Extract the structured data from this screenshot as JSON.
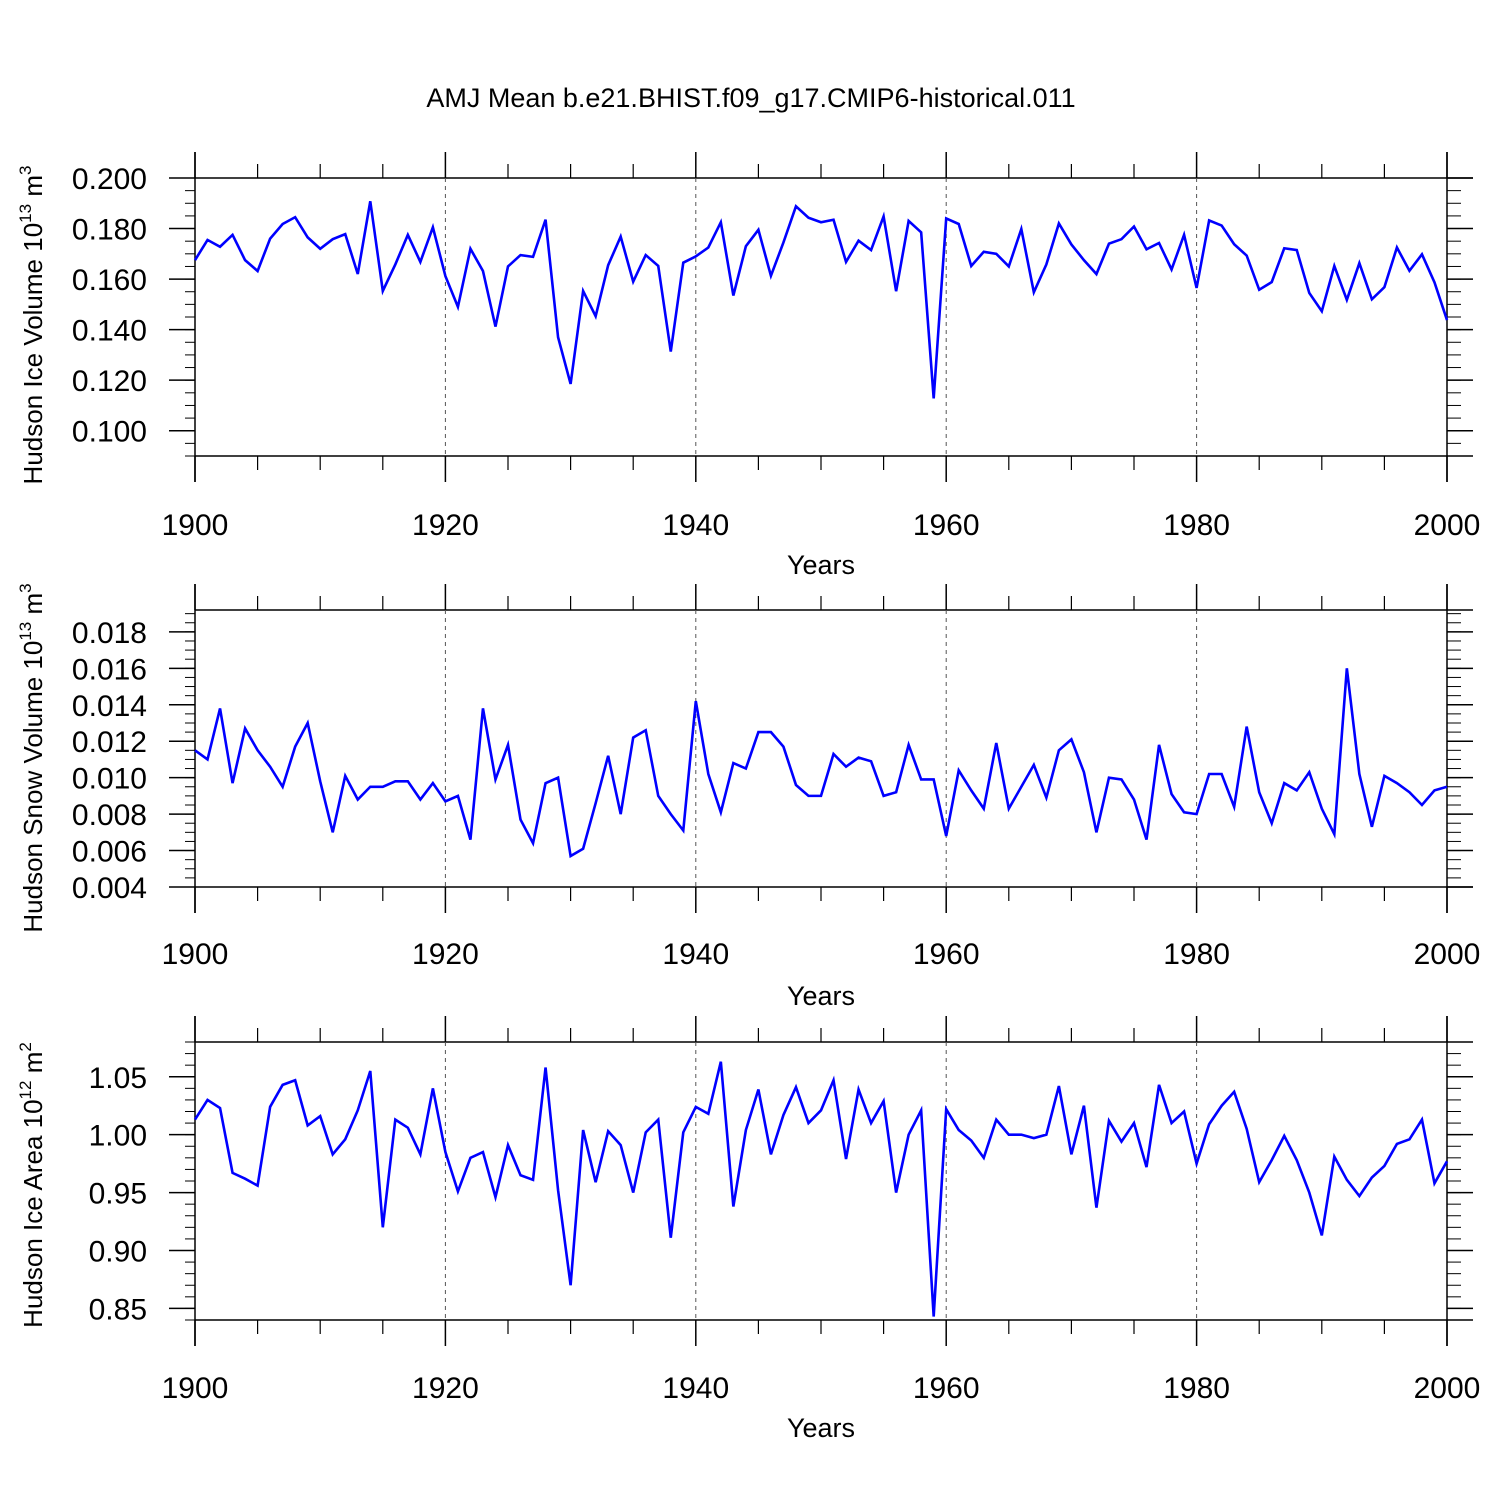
{
  "title": "AMJ Mean b.e21.BHIST.f09_g17.CMIP6-historical.011",
  "chart_data": [
    {
      "type": "line",
      "name": "panel-ice-volume",
      "ylabel_main": "Hudson Ice Volume 10",
      "ylabel_exp": "13",
      "ylabel_unit": " m",
      "ylabel_unit_exp": "3",
      "xlabel": "Years",
      "xlim": [
        1900,
        2000
      ],
      "ylim": [
        0.09,
        0.2
      ],
      "x_ticks": [
        "1900",
        "1920",
        "1940",
        "1960",
        "1980",
        "2000"
      ],
      "y_ticks": [
        "0.100",
        "0.120",
        "0.140",
        "0.160",
        "0.180",
        "0.200"
      ],
      "line_color": "#0000ff",
      "x_start": 1900,
      "values": [
        0.1675,
        0.1755,
        0.1728,
        0.1775,
        0.1675,
        0.1632,
        0.176,
        0.1818,
        0.1845,
        0.1765,
        0.172,
        0.1758,
        0.1778,
        0.162,
        0.1908,
        0.1553,
        0.1658,
        0.1775,
        0.1668,
        0.1805,
        0.1612,
        0.149,
        0.172,
        0.1632,
        0.1412,
        0.165,
        0.1695,
        0.1688,
        0.1835,
        0.137,
        0.1185,
        0.1553,
        0.1453,
        0.1655,
        0.1768,
        0.159,
        0.1695,
        0.1652,
        0.1313,
        0.1665,
        0.169,
        0.1725,
        0.1825,
        0.1535,
        0.173,
        0.1795,
        0.1613,
        0.1745,
        0.1888,
        0.1843,
        0.1825,
        0.1835,
        0.1668,
        0.1752,
        0.1715,
        0.1848,
        0.1552,
        0.183,
        0.1785,
        0.1128,
        0.184,
        0.1818,
        0.1652,
        0.1708,
        0.17,
        0.165,
        0.1798,
        0.1548,
        0.1658,
        0.182,
        0.1737,
        0.1675,
        0.162,
        0.174,
        0.1758,
        0.1808,
        0.1718,
        0.1743,
        0.1638,
        0.1775,
        0.1565,
        0.1832,
        0.1812,
        0.1738,
        0.1693,
        0.1558,
        0.1588,
        0.1722,
        0.1715,
        0.1545,
        0.1473,
        0.1652,
        0.1518,
        0.1663,
        0.152,
        0.1568,
        0.1725,
        0.1633,
        0.1698,
        0.1587,
        0.1438
      ]
    },
    {
      "type": "line",
      "name": "panel-snow-volume",
      "ylabel_main": "Hudson Snow Volume 10",
      "ylabel_exp": "13",
      "ylabel_unit": " m",
      "ylabel_unit_exp": "3",
      "xlabel": "Years",
      "xlim": [
        1900,
        2000
      ],
      "ylim": [
        0.004,
        0.0192
      ],
      "x_ticks": [
        "1900",
        "1920",
        "1940",
        "1960",
        "1980",
        "2000"
      ],
      "y_ticks": [
        "0.004",
        "0.006",
        "0.008",
        "0.010",
        "0.012",
        "0.014",
        "0.016",
        "0.018"
      ],
      "line_color": "#0000ff",
      "x_start": 1900,
      "values": [
        0.0115,
        0.011,
        0.0138,
        0.0097,
        0.0127,
        0.0115,
        0.0106,
        0.0095,
        0.0117,
        0.013,
        0.0098,
        0.007,
        0.0101,
        0.0088,
        0.0095,
        0.0095,
        0.0098,
        0.0098,
        0.0088,
        0.0097,
        0.0087,
        0.009,
        0.0066,
        0.0138,
        0.0099,
        0.0118,
        0.0077,
        0.0064,
        0.0097,
        0.01,
        0.0057,
        0.0061,
        0.0086,
        0.0112,
        0.008,
        0.0122,
        0.0126,
        0.009,
        0.008,
        0.0071,
        0.0142,
        0.0102,
        0.0081,
        0.0108,
        0.0105,
        0.0125,
        0.0125,
        0.0117,
        0.0096,
        0.009,
        0.009,
        0.0113,
        0.0106,
        0.0111,
        0.0109,
        0.009,
        0.0092,
        0.0118,
        0.0099,
        0.0099,
        0.0068,
        0.0104,
        0.0093,
        0.0083,
        0.0119,
        0.0083,
        0.0095,
        0.0107,
        0.0089,
        0.0115,
        0.0121,
        0.0103,
        0.007,
        0.01,
        0.0099,
        0.0088,
        0.0066,
        0.0118,
        0.0091,
        0.0081,
        0.008,
        0.0102,
        0.0102,
        0.0084,
        0.0128,
        0.0092,
        0.0075,
        0.0097,
        0.0093,
        0.0103,
        0.0083,
        0.0069,
        0.016,
        0.0102,
        0.0073,
        0.0101,
        0.0097,
        0.0092,
        0.0085,
        0.0093,
        0.0095
      ]
    },
    {
      "type": "line",
      "name": "panel-ice-area",
      "ylabel_main": "Hudson Ice Area 10",
      "ylabel_exp": "12",
      "ylabel_unit": " m",
      "ylabel_unit_exp": "2",
      "xlabel": "Years",
      "xlim": [
        1900,
        2000
      ],
      "ylim": [
        0.84,
        1.08
      ],
      "x_ticks": [
        "1900",
        "1920",
        "1940",
        "1960",
        "1980",
        "2000"
      ],
      "y_ticks": [
        "0.85",
        "0.90",
        "0.95",
        "1.00",
        "1.05"
      ],
      "line_color": "#0000ff",
      "x_start": 1900,
      "values": [
        1.013,
        1.03,
        1.023,
        0.967,
        0.962,
        0.956,
        1.024,
        1.043,
        1.047,
        1.008,
        1.016,
        0.983,
        0.996,
        1.021,
        1.055,
        0.92,
        1.013,
        1.006,
        0.983,
        1.04,
        0.985,
        0.951,
        0.98,
        0.985,
        0.946,
        0.991,
        0.965,
        0.961,
        1.058,
        0.952,
        0.87,
        1.004,
        0.959,
        1.003,
        0.991,
        0.95,
        1.002,
        1.013,
        0.911,
        1.002,
        1.024,
        1.018,
        1.063,
        0.938,
        1.004,
        1.039,
        0.983,
        1.017,
        1.041,
        1.01,
        1.021,
        1.047,
        0.979,
        1.039,
        1.01,
        1.029,
        0.95,
        1.0,
        1.021,
        0.843,
        1.022,
        1.004,
        0.995,
        0.98,
        1.013,
        1.0,
        1.0,
        0.997,
        1.0,
        1.042,
        0.983,
        1.025,
        0.937,
        1.012,
        0.994,
        1.01,
        0.972,
        1.043,
        1.01,
        1.02,
        0.975,
        1.009,
        1.025,
        1.037,
        1.005,
        0.959,
        0.978,
        0.999,
        0.978,
        0.95,
        0.913,
        0.981,
        0.961,
        0.947,
        0.963,
        0.973,
        0.992,
        0.996,
        1.013,
        0.958,
        0.977
      ]
    }
  ]
}
